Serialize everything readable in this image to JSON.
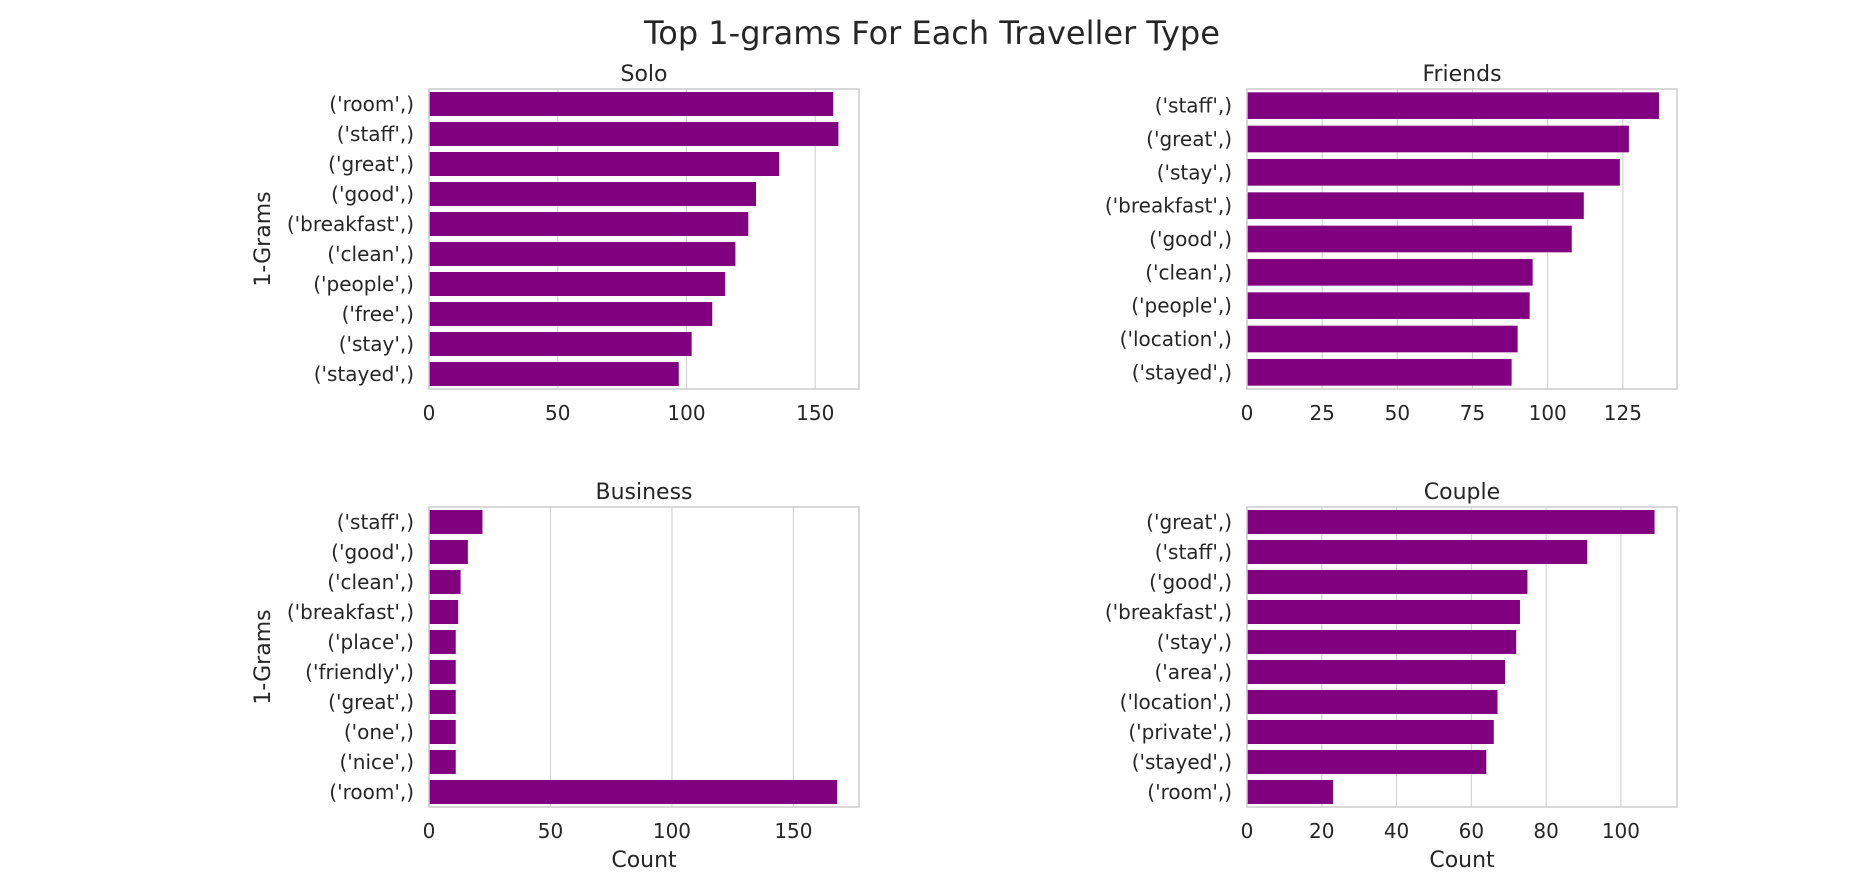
{
  "figure": {
    "title": "Top 1-grams For Each Traveller Type"
  },
  "colors": {
    "bar": "#800080",
    "grid": "#d5d5d5",
    "frame": "#cccccc",
    "text": "#262626"
  },
  "chart_data": [
    {
      "type": "bar",
      "orientation": "horizontal",
      "title": "Solo",
      "xlabel": "",
      "ylabel": "1-Grams",
      "xlim": [
        0,
        167
      ],
      "xticks": [
        0,
        50,
        100,
        150
      ],
      "categories": [
        "('room',)",
        "('staff',)",
        "('great',)",
        "('good',)",
        "('breakfast',)",
        "('clean',)",
        "('people',)",
        "('free',)",
        "('stay',)",
        "('stayed',)"
      ],
      "values": [
        157,
        159,
        136,
        127,
        124,
        119,
        115,
        110,
        102,
        97
      ]
    },
    {
      "type": "bar",
      "orientation": "horizontal",
      "title": "Friends",
      "xlabel": "",
      "ylabel": "",
      "xlim": [
        0,
        143
      ],
      "xticks": [
        0,
        25,
        50,
        75,
        100,
        125
      ],
      "categories": [
        "('staff',)",
        "('great',)",
        "('stay',)",
        "('breakfast',)",
        "('good',)",
        "('clean',)",
        "('people',)",
        "('location',)",
        "('stayed',)"
      ],
      "values": [
        137,
        127,
        124,
        112,
        108,
        95,
        94,
        90,
        88
      ]
    },
    {
      "type": "bar",
      "orientation": "horizontal",
      "title": "Business",
      "xlabel": "Count",
      "ylabel": "1-Grams",
      "xlim": [
        0,
        177
      ],
      "xticks": [
        0,
        50,
        100,
        150
      ],
      "categories": [
        "('staff',)",
        "('good',)",
        "('clean',)",
        "('breakfast',)",
        "('place',)",
        "('friendly',)",
        "('great',)",
        "('one',)",
        "('nice',)",
        "('room',)"
      ],
      "values": [
        22,
        16,
        13,
        12,
        11,
        11,
        11,
        11,
        11,
        168
      ]
    },
    {
      "type": "bar",
      "orientation": "horizontal",
      "title": "Couple",
      "xlabel": "Count",
      "ylabel": "",
      "xlim": [
        0,
        115
      ],
      "xticks": [
        0,
        20,
        40,
        60,
        80,
        100
      ],
      "categories": [
        "('great',)",
        "('staff',)",
        "('good',)",
        "('breakfast',)",
        "('stay',)",
        "('area',)",
        "('location',)",
        "('private',)",
        "('stayed',)",
        "('room',)"
      ],
      "values": [
        109,
        91,
        75,
        73,
        72,
        69,
        67,
        66,
        64,
        23
      ]
    }
  ]
}
